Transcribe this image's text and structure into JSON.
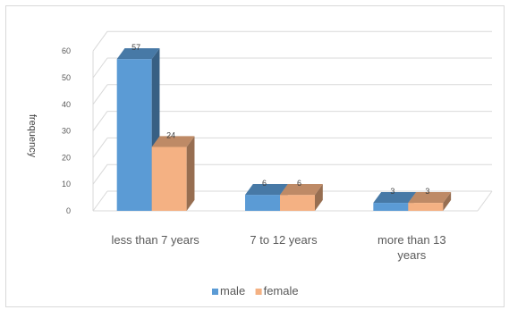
{
  "chart_data": {
    "type": "bar",
    "variant": "3d-clustered",
    "title": "",
    "xlabel": "",
    "ylabel": "frequency",
    "categories": [
      "less than 7 years",
      "7 to 12 years",
      "more than 13 years"
    ],
    "series": [
      {
        "name": "male",
        "values": [
          57,
          6,
          3
        ],
        "color": "#5b9bd5"
      },
      {
        "name": "female",
        "values": [
          24,
          6,
          3
        ],
        "color": "#f4b183"
      }
    ],
    "ylim": [
      0,
      60
    ],
    "yticks": [
      0,
      10,
      20,
      30,
      40,
      50,
      60
    ],
    "grid": true,
    "legend_position": "bottom"
  }
}
